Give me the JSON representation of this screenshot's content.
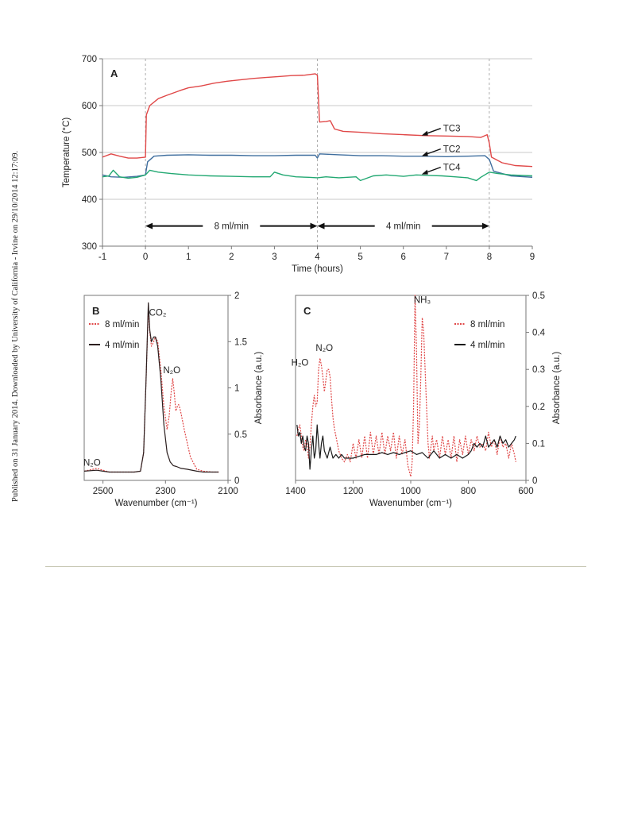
{
  "sidebar": {
    "text": "Published on 31 January 2014. Downloaded by University of California - Irvine on 29/10/2014 12:17:09."
  },
  "chart_data": [
    {
      "panel": "A",
      "type": "line",
      "xlabel": "Time (hours)",
      "ylabel": "Temperature (°C)",
      "xlim": [
        -1,
        9
      ],
      "ylim": [
        300,
        700
      ],
      "xticks": [
        -1,
        0,
        1,
        2,
        3,
        4,
        5,
        6,
        7,
        8,
        9
      ],
      "yticks": [
        300,
        400,
        500,
        600,
        700
      ],
      "grid": "horizontal",
      "vlines": [
        0,
        4,
        8
      ],
      "flow_annotations": [
        {
          "label": "8 ml/min",
          "from": 0,
          "to": 4
        },
        {
          "label": "4 ml/min",
          "from": 4,
          "to": 8
        }
      ],
      "series": [
        {
          "name": "TC3",
          "color": "#e04848",
          "x": [
            -1,
            -0.8,
            -0.6,
            -0.4,
            -0.2,
            0,
            0.02,
            0.1,
            0.3,
            0.5,
            0.8,
            1.0,
            1.3,
            1.6,
            1.9,
            2.2,
            2.5,
            2.8,
            3.1,
            3.4,
            3.7,
            3.95,
            4.0,
            4.05,
            4.2,
            4.3,
            4.4,
            4.6,
            5.0,
            5.5,
            6.0,
            6.5,
            7.0,
            7.5,
            7.8,
            7.95,
            8.0,
            8.05,
            8.3,
            8.6,
            9.0
          ],
          "y": [
            490,
            497,
            492,
            488,
            488,
            490,
            580,
            600,
            615,
            622,
            632,
            638,
            642,
            648,
            652,
            655,
            658,
            660,
            662,
            664,
            665,
            668,
            665,
            565,
            566,
            568,
            550,
            545,
            543,
            540,
            538,
            536,
            535,
            534,
            532,
            538,
            520,
            490,
            478,
            472,
            470
          ]
        },
        {
          "name": "TC2",
          "color": "#3f6e9e",
          "x": [
            -1,
            -0.8,
            -0.5,
            -0.2,
            0,
            0.05,
            0.2,
            0.5,
            1.0,
            1.5,
            2.0,
            2.5,
            3.0,
            3.5,
            3.95,
            4.0,
            4.05,
            4.5,
            5.0,
            5.5,
            6.0,
            6.5,
            7.0,
            7.5,
            7.9,
            8.0,
            8.1,
            8.5,
            9.0
          ],
          "y": [
            452,
            448,
            447,
            449,
            452,
            480,
            492,
            494,
            495,
            494,
            494,
            493,
            493,
            494,
            494,
            488,
            497,
            495,
            493,
            493,
            492,
            492,
            491,
            492,
            493,
            485,
            460,
            450,
            447
          ]
        },
        {
          "name": "TC4",
          "color": "#22a872",
          "x": [
            -1,
            -0.85,
            -0.75,
            -0.6,
            -0.4,
            -0.2,
            0,
            0.1,
            0.3,
            0.6,
            1.0,
            1.5,
            2.0,
            2.5,
            2.9,
            3.0,
            3.2,
            3.5,
            3.8,
            4.0,
            4.2,
            4.5,
            4.9,
            5.0,
            5.3,
            5.6,
            6.0,
            6.3,
            6.6,
            6.9,
            7.2,
            7.5,
            7.7,
            7.8,
            8.0,
            8.2,
            8.5,
            9.0
          ],
          "y": [
            448,
            450,
            462,
            448,
            445,
            447,
            452,
            462,
            458,
            455,
            452,
            450,
            449,
            448,
            448,
            458,
            452,
            448,
            447,
            446,
            448,
            446,
            448,
            440,
            450,
            452,
            449,
            452,
            451,
            450,
            448,
            446,
            440,
            447,
            458,
            455,
            452,
            450
          ]
        }
      ],
      "annotations": [
        {
          "text": "TC3",
          "x": 6.5,
          "y": 548
        },
        {
          "text": "TC2",
          "x": 6.5,
          "y": 504
        },
        {
          "text": "TC4",
          "x": 6.5,
          "y": 465
        }
      ]
    },
    {
      "panel": "B",
      "type": "line",
      "xlabel": "Wavenumber (cm⁻¹)",
      "ylabel": "Absorbance (a.u.)",
      "xlim": [
        2560,
        2100
      ],
      "ylim": [
        0,
        2
      ],
      "xticks": [
        2500,
        2300,
        2100
      ],
      "yticks": [
        0,
        0.5,
        1,
        1.5,
        2
      ],
      "legend": "top-left",
      "series": [
        {
          "name": "8 ml/min",
          "color": "#e04848",
          "dashed": true,
          "x": [
            2560,
            2520,
            2480,
            2440,
            2400,
            2380,
            2370,
            2362,
            2355,
            2350,
            2345,
            2338,
            2332,
            2325,
            2315,
            2305,
            2295,
            2288,
            2282,
            2277,
            2272,
            2267,
            2262,
            2258,
            2254,
            2250,
            2240,
            2230,
            2220,
            2200,
            2180,
            2150,
            2130
          ],
          "y": [
            0.1,
            0.13,
            0.09,
            0.09,
            0.09,
            0.1,
            0.3,
            1.1,
            1.85,
            1.6,
            1.45,
            1.5,
            1.55,
            1.5,
            1.2,
            0.8,
            0.55,
            0.7,
            0.95,
            1.1,
            0.95,
            0.75,
            0.8,
            0.82,
            0.78,
            0.72,
            0.55,
            0.4,
            0.25,
            0.12,
            0.1,
            0.09,
            0.09
          ]
        },
        {
          "name": "4 ml/min",
          "color": "#2b1f1f",
          "x": [
            2560,
            2520,
            2480,
            2440,
            2400,
            2380,
            2370,
            2362,
            2355,
            2350,
            2345,
            2338,
            2332,
            2325,
            2315,
            2305,
            2295,
            2285,
            2275,
            2265,
            2250,
            2230,
            2200,
            2180,
            2150,
            2130
          ],
          "y": [
            0.1,
            0.11,
            0.09,
            0.09,
            0.09,
            0.1,
            0.3,
            1.1,
            1.92,
            1.62,
            1.5,
            1.55,
            1.55,
            1.45,
            1.1,
            0.6,
            0.3,
            0.2,
            0.16,
            0.15,
            0.13,
            0.12,
            0.1,
            0.09,
            0.09,
            0.09
          ]
        }
      ],
      "annotations": [
        {
          "text": "CO₂",
          "x": 2325,
          "y": 1.78
        },
        {
          "text": "N₂O",
          "x": 2280,
          "y": 1.16
        },
        {
          "text": "N₂O",
          "x": 2535,
          "y": 0.16
        }
      ]
    },
    {
      "panel": "C",
      "type": "line",
      "xlabel": "Wavenumber (cm⁻¹)",
      "ylabel": "Absorbance (a.u.)",
      "xlim": [
        1400,
        600
      ],
      "ylim": [
        0,
        0.5
      ],
      "xticks": [
        1400,
        1200,
        1000,
        800,
        600
      ],
      "yticks": [
        0,
        0.1,
        0.2,
        0.3,
        0.4,
        0.5
      ],
      "legend": "top-right",
      "series": [
        {
          "name": "8 ml/min",
          "color": "#e04848",
          "dashed": true,
          "x": [
            1395,
            1390,
            1385,
            1380,
            1375,
            1370,
            1365,
            1360,
            1355,
            1350,
            1345,
            1340,
            1335,
            1330,
            1325,
            1320,
            1315,
            1310,
            1305,
            1300,
            1295,
            1290,
            1285,
            1280,
            1275,
            1270,
            1265,
            1260,
            1255,
            1250,
            1245,
            1240,
            1230,
            1220,
            1210,
            1200,
            1190,
            1180,
            1170,
            1160,
            1150,
            1140,
            1130,
            1120,
            1110,
            1100,
            1090,
            1080,
            1070,
            1060,
            1050,
            1040,
            1030,
            1020,
            1010,
            1000,
            995,
            990,
            985,
            980,
            975,
            970,
            965,
            960,
            955,
            950,
            945,
            940,
            935,
            930,
            925,
            920,
            910,
            900,
            890,
            880,
            870,
            860,
            850,
            840,
            830,
            820,
            810,
            800,
            790,
            780,
            770,
            760,
            750,
            740,
            730,
            720,
            710,
            700,
            690,
            680,
            670,
            660,
            650,
            640,
            635
          ],
          "y": [
            0.12,
            0.14,
            0.15,
            0.12,
            0.09,
            0.08,
            0.11,
            0.1,
            0.06,
            0.09,
            0.15,
            0.2,
            0.23,
            0.2,
            0.21,
            0.3,
            0.33,
            0.31,
            0.28,
            0.24,
            0.27,
            0.3,
            0.3,
            0.28,
            0.22,
            0.17,
            0.14,
            0.12,
            0.1,
            0.08,
            0.07,
            0.06,
            0.05,
            0.07,
            0.05,
            0.1,
            0.06,
            0.11,
            0.06,
            0.12,
            0.06,
            0.13,
            0.07,
            0.12,
            0.07,
            0.13,
            0.07,
            0.12,
            0.08,
            0.13,
            0.06,
            0.12,
            0.07,
            0.11,
            0.04,
            0.01,
            0.05,
            0.2,
            0.5,
            0.35,
            0.1,
            0.15,
            0.28,
            0.44,
            0.4,
            0.3,
            0.2,
            0.1,
            0.06,
            0.09,
            0.12,
            0.08,
            0.11,
            0.06,
            0.12,
            0.07,
            0.11,
            0.06,
            0.12,
            0.05,
            0.11,
            0.07,
            0.12,
            0.07,
            0.11,
            0.08,
            0.12,
            0.09,
            0.1,
            0.08,
            0.13,
            0.09,
            0.11,
            0.07,
            0.12,
            0.09,
            0.1,
            0.06,
            0.1,
            0.07,
            0.05
          ]
        },
        {
          "name": "4 ml/min",
          "color": "#1a1a1a",
          "x": [
            1395,
            1390,
            1385,
            1380,
            1375,
            1370,
            1365,
            1360,
            1355,
            1350,
            1345,
            1340,
            1335,
            1330,
            1325,
            1320,
            1315,
            1310,
            1305,
            1300,
            1290,
            1280,
            1270,
            1260,
            1250,
            1240,
            1230,
            1220,
            1200,
            1180,
            1160,
            1140,
            1120,
            1100,
            1080,
            1060,
            1040,
            1020,
            1000,
            980,
            960,
            940,
            920,
            900,
            880,
            860,
            840,
            820,
            800,
            790,
            780,
            770,
            760,
            750,
            740,
            730,
            720,
            710,
            700,
            690,
            680,
            670,
            660,
            650,
            640,
            635
          ],
          "y": [
            0.15,
            0.12,
            0.13,
            0.1,
            0.12,
            0.09,
            0.08,
            0.12,
            0.1,
            0.03,
            0.08,
            0.12,
            0.06,
            0.08,
            0.15,
            0.1,
            0.06,
            0.1,
            0.12,
            0.08,
            0.06,
            0.09,
            0.06,
            0.07,
            0.06,
            0.07,
            0.06,
            0.06,
            0.06,
            0.065,
            0.07,
            0.07,
            0.07,
            0.075,
            0.07,
            0.075,
            0.07,
            0.075,
            0.08,
            0.07,
            0.075,
            0.06,
            0.08,
            0.06,
            0.07,
            0.06,
            0.07,
            0.06,
            0.07,
            0.08,
            0.1,
            0.09,
            0.1,
            0.09,
            0.12,
            0.09,
            0.1,
            0.11,
            0.09,
            0.12,
            0.1,
            0.11,
            0.09,
            0.1,
            0.11,
            0.12
          ]
        }
      ],
      "annotations": [
        {
          "text": "H₂O",
          "x": 1385,
          "y": 0.31
        },
        {
          "text": "N₂O",
          "x": 1300,
          "y": 0.35
        },
        {
          "text": "NH₃",
          "x": 960,
          "y": 0.48
        }
      ]
    }
  ]
}
